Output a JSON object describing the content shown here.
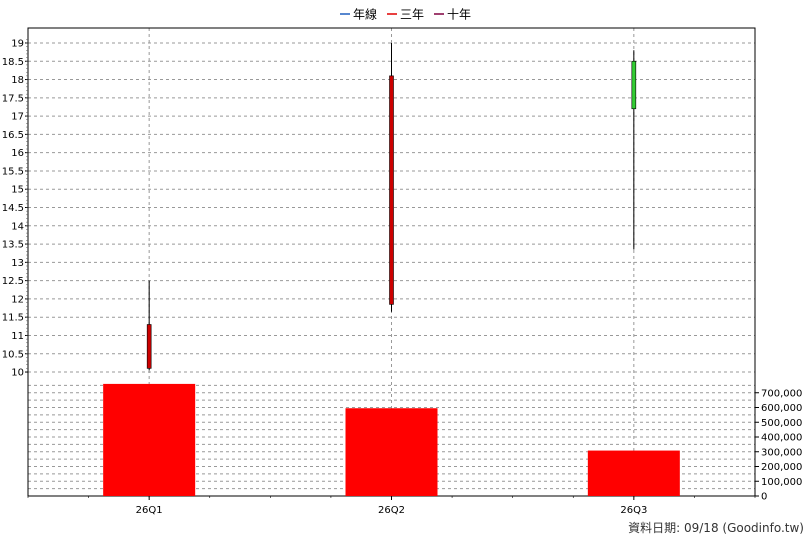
{
  "legend": [
    {
      "label": "年線",
      "color": "#1f5fbf"
    },
    {
      "label": "三年",
      "color": "#e00000"
    },
    {
      "label": "十年",
      "color": "#800040"
    }
  ],
  "footer": "資料日期: 09/18  (Goodinfo.tw)",
  "chart_data": {
    "type": "candlestick",
    "categories": [
      "26Q1",
      "26Q2",
      "26Q3"
    ],
    "price_axis": {
      "ylim": [
        9.7,
        19.3
      ],
      "ticks": [
        "10",
        "10.5",
        "11",
        "11.5",
        "12",
        "12.5",
        "13",
        "13.5",
        "14",
        "14.5",
        "15",
        "15.5",
        "16",
        "16.5",
        "17",
        "17.5",
        "18",
        "18.5",
        "19"
      ]
    },
    "candles": [
      {
        "open": 11.3,
        "high": 12.5,
        "low": 10.05,
        "close": 10.1,
        "color": "#cc0000"
      },
      {
        "open": 18.1,
        "high": 19.0,
        "low": 11.65,
        "close": 11.85,
        "color": "#cc0000"
      },
      {
        "open": 17.2,
        "high": 18.8,
        "low": 13.35,
        "close": 18.5,
        "color": "#33cc33"
      }
    ],
    "volume_axis": {
      "ylim": [
        0,
        800000
      ],
      "ticks": [
        "0",
        "100,000",
        "200,000",
        "300,000",
        "400,000",
        "500,000",
        "600,000",
        "700,000"
      ]
    },
    "volume": [
      760000,
      595000,
      308000
    ],
    "volume_color": "#ff0000",
    "grid": true
  }
}
